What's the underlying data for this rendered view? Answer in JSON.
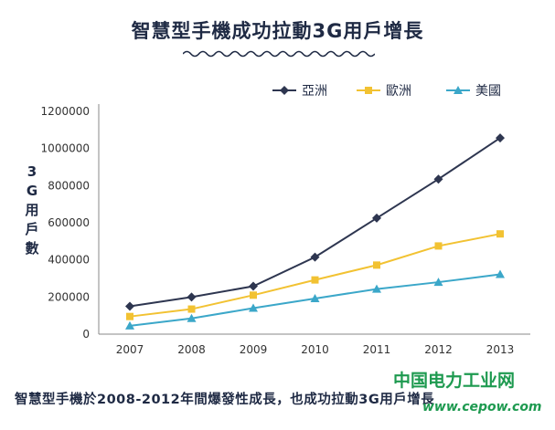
{
  "chart_data": {
    "type": "line",
    "title": "智慧型手機成功拉動3G用戶增長",
    "ylabel": "3G用戶數",
    "categories": [
      "2007",
      "2008",
      "2009",
      "2010",
      "2011",
      "2012",
      "2013"
    ],
    "yticks": [
      "0",
      "200000",
      "400000",
      "600000",
      "800000",
      "1000000",
      "1200000"
    ],
    "ylim": [
      0,
      1200000
    ],
    "legend_position": "top-right",
    "grid": false,
    "series": [
      {
        "name": "亞洲",
        "color": "#2e3650",
        "marker": "diamond",
        "values": [
          150000,
          200000,
          258000,
          415000,
          625000,
          835000,
          1057000
        ]
      },
      {
        "name": "歐洲",
        "color": "#f2c232",
        "marker": "square",
        "values": [
          95000,
          135000,
          210000,
          292000,
          372000,
          475000,
          540000
        ]
      },
      {
        "name": "美國",
        "color": "#3ba7c9",
        "marker": "triangle",
        "values": [
          45000,
          85000,
          140000,
          192000,
          243000,
          280000,
          322000
        ]
      }
    ]
  },
  "caption": "智慧型手機於2008-2012年間爆發性成長，也成功拉動3G用戶增長",
  "watermark": {
    "text": "中国电力工业网",
    "url": "www.cepow.com"
  }
}
